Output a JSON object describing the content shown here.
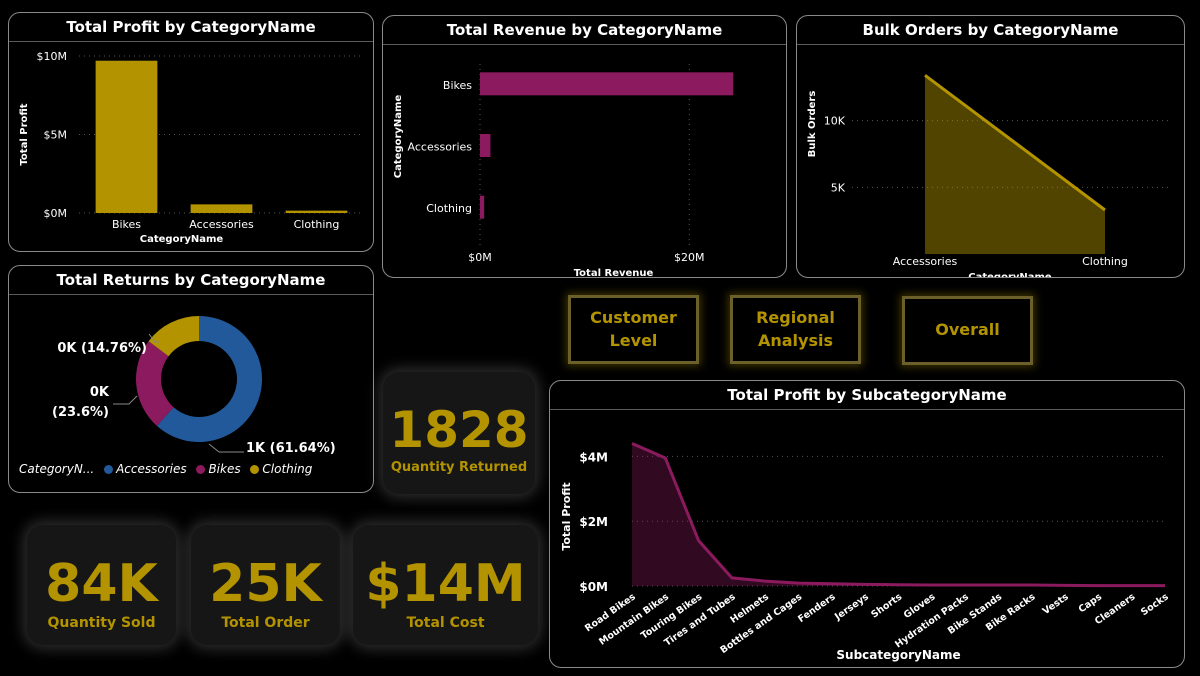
{
  "colors": {
    "gold": "#b39400",
    "magenta": "#8b1a5e",
    "blue": "#22599a",
    "grid": "#555555"
  },
  "nav": {
    "customer": "Customer\nLevel",
    "regional": "Regional\nAnalysis",
    "overall": "Overall"
  },
  "kpis": {
    "returned": {
      "value": "1828",
      "label": "Quantity Returned"
    },
    "sold": {
      "value": "84K",
      "label": "Quantity Sold"
    },
    "orders": {
      "value": "25K",
      "label": "Total Order"
    },
    "cost": {
      "value": "$14M",
      "label": "Total Cost"
    }
  },
  "chart_data": [
    {
      "id": "profit_by_category",
      "type": "bar",
      "title": "Total Profit by CategoryName",
      "xlabel": "CategoryName",
      "ylabel": "Total Profit",
      "categories": [
        "Bikes",
        "Accessories",
        "Clothing"
      ],
      "values": [
        9.7,
        0.55,
        0.15
      ],
      "ylim": [
        0,
        10
      ],
      "yticks": [
        0,
        5,
        10
      ],
      "ytick_labels": [
        "$0M",
        "$5M",
        "$10M"
      ],
      "grid": true
    },
    {
      "id": "revenue_by_category",
      "type": "bar",
      "orientation": "horizontal",
      "title": "Total Revenue by CategoryName",
      "xlabel": "Total Revenue",
      "ylabel": "CategoryName",
      "categories": [
        "Bikes",
        "Accessories",
        "Clothing"
      ],
      "values": [
        24.2,
        1.0,
        0.4
      ],
      "xlim": [
        0,
        28
      ],
      "xticks": [
        0,
        20
      ],
      "xtick_labels": [
        "$0M",
        "$20M"
      ],
      "grid": true
    },
    {
      "id": "bulk_orders_by_category",
      "type": "area",
      "title": "Bulk Orders by CategoryName",
      "xlabel": "CategoryName",
      "ylabel": "Bulk Orders",
      "categories": [
        "Accessories",
        "Clothing"
      ],
      "values": [
        13400,
        3300
      ],
      "ylim": [
        0,
        15000
      ],
      "yticks": [
        5000,
        10000
      ],
      "ytick_labels": [
        "5K",
        "10K"
      ],
      "grid": true
    },
    {
      "id": "returns_by_category",
      "type": "pie",
      "donut": true,
      "title": "Total Returns by CategoryName",
      "legend_title": "CategoryN...",
      "legend_placement": "bottom",
      "slices": [
        {
          "name": "Accessories",
          "value": 61.64,
          "label": "1K (61.64%)"
        },
        {
          "name": "Bikes",
          "value": 23.6,
          "label": "0K\n(23.6%)"
        },
        {
          "name": "Clothing",
          "value": 14.76,
          "label": "0K (14.76%)"
        }
      ]
    },
    {
      "id": "profit_by_subcategory",
      "type": "area",
      "title": "Total Profit by SubcategoryName",
      "xlabel": "SubcategoryName",
      "ylabel": "Total Profit",
      "categories": [
        "Road Bikes",
        "Mountain Bikes",
        "Touring Bikes",
        "Tires and Tubes",
        "Helmets",
        "Bottles and Cages",
        "Fenders",
        "Jerseys",
        "Shorts",
        "Gloves",
        "Hydration Packs",
        "Bike Stands",
        "Bike Racks",
        "Vests",
        "Caps",
        "Cleaners",
        "Socks"
      ],
      "values": [
        4.4,
        3.95,
        1.4,
        0.25,
        0.15,
        0.09,
        0.07,
        0.05,
        0.04,
        0.03,
        0.03,
        0.03,
        0.03,
        0.02,
        0.01,
        0.01,
        0.01
      ],
      "ylim": [
        0,
        4.6
      ],
      "yticks": [
        0,
        2,
        4
      ],
      "ytick_labels": [
        "$0M",
        "$2M",
        "$4M"
      ],
      "grid": true
    }
  ]
}
